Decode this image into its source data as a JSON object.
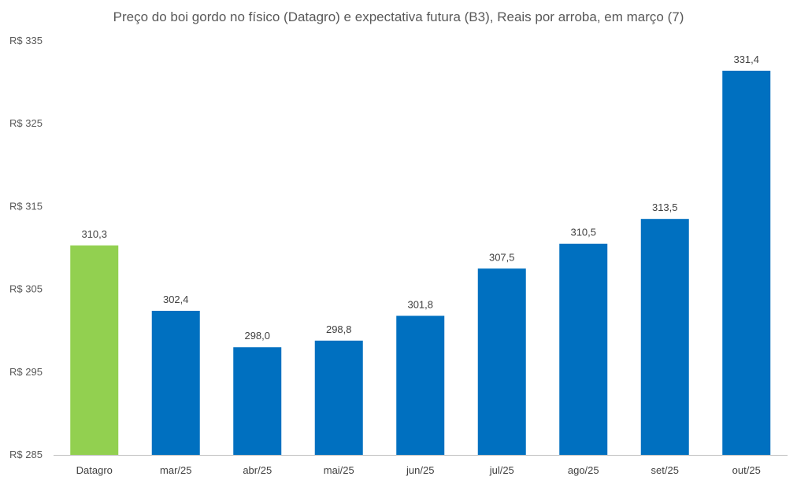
{
  "chart_data": {
    "type": "bar",
    "title": "Preço do boi gordo no físico (Datagro) e expectativa futura (B3), Reais por arroba, em março (7)",
    "categories": [
      "Datagro",
      "mar/25",
      "abr/25",
      "mai/25",
      "jun/25",
      "jul/25",
      "ago/25",
      "set/25",
      "out/25"
    ],
    "values": [
      310.3,
      302.4,
      298.0,
      298.8,
      301.8,
      307.5,
      310.5,
      313.5,
      331.4
    ],
    "value_labels": [
      "310,3",
      "302,4",
      "298,0",
      "298,8",
      "301,8",
      "307,5",
      "310,5",
      "313,5",
      "331,4"
    ],
    "ylim": [
      285,
      335
    ],
    "yticks": [
      285,
      295,
      305,
      315,
      325,
      335
    ],
    "ytick_labels": [
      "R$ 285",
      "R$ 295",
      "R$ 305",
      "R$ 315",
      "R$ 325",
      "R$ 335"
    ],
    "xlabel": "",
    "ylabel": "",
    "grid": false,
    "bar_colors": [
      "#92D050",
      "#0070C0",
      "#0070C0",
      "#0070C0",
      "#0070C0",
      "#0070C0",
      "#0070C0",
      "#0070C0",
      "#0070C0"
    ],
    "axis_color": "#BFBFBF"
  }
}
